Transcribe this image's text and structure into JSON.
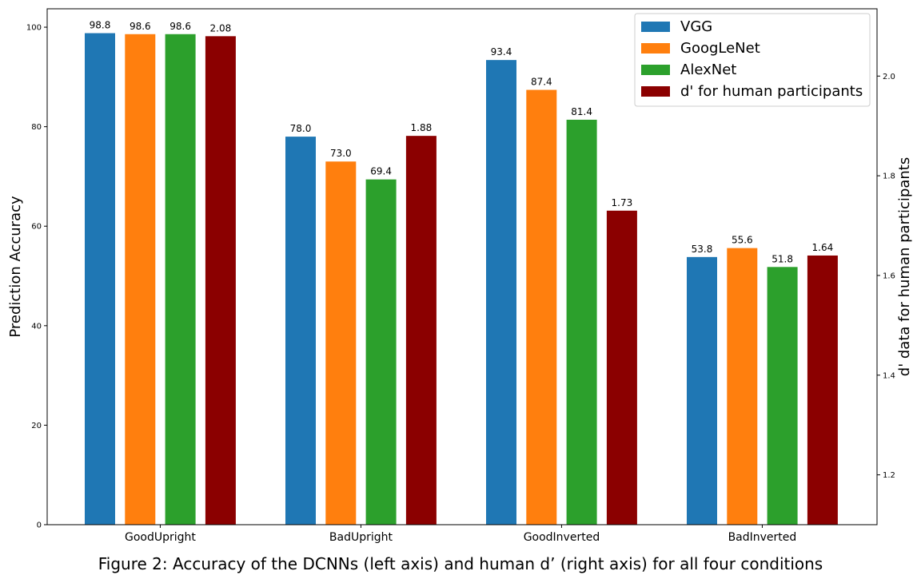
{
  "caption": "Figure 2: Accuracy of the DCNNs (left axis) and human d’ (right axis) for all four conditions",
  "chart_data": {
    "type": "bar",
    "categories": [
      "GoodUpright",
      "BadUpright",
      "GoodInverted",
      "BadInverted"
    ],
    "series": [
      {
        "name": "VGG",
        "axis": "left",
        "values": [
          98.8,
          78.0,
          93.4,
          53.8
        ],
        "labels": [
          "98.8",
          "78.0",
          "93.4",
          "53.8"
        ],
        "color": "#1f77b4"
      },
      {
        "name": "GoogLeNet",
        "axis": "left",
        "values": [
          98.6,
          73.0,
          87.4,
          55.6
        ],
        "labels": [
          "98.6",
          "73.0",
          "87.4",
          "55.6"
        ],
        "color": "#ff7f0e"
      },
      {
        "name": "AlexNet",
        "axis": "left",
        "values": [
          98.6,
          69.4,
          81.4,
          51.8
        ],
        "labels": [
          "98.6",
          "69.4",
          "81.4",
          "51.8"
        ],
        "color": "#2ca02c"
      },
      {
        "name": "d' for human participants",
        "axis": "right",
        "values": [
          2.08,
          1.88,
          1.73,
          1.64
        ],
        "labels": [
          "2.08",
          "1.88",
          "1.73",
          "1.64"
        ],
        "color": "#8b0000"
      }
    ],
    "ylabel_left": "Prediction Accuracy",
    "ylabel_right": "d' data for human participants",
    "ylim_left": [
      0,
      103.7
    ],
    "ylim_right": [
      1.1,
      2.135
    ],
    "yticks_left": [
      0,
      20,
      40,
      60,
      80,
      100
    ],
    "yticks_right": [
      1.2,
      1.4,
      1.6,
      1.8,
      2.0
    ],
    "ytick_labels_left": [
      "0",
      "20",
      "40",
      "60",
      "80",
      "100"
    ],
    "ytick_labels_right": [
      "1.2",
      "1.4",
      "1.6",
      "1.8",
      "2.0"
    ],
    "legend_position": "top-right",
    "grid": false
  }
}
